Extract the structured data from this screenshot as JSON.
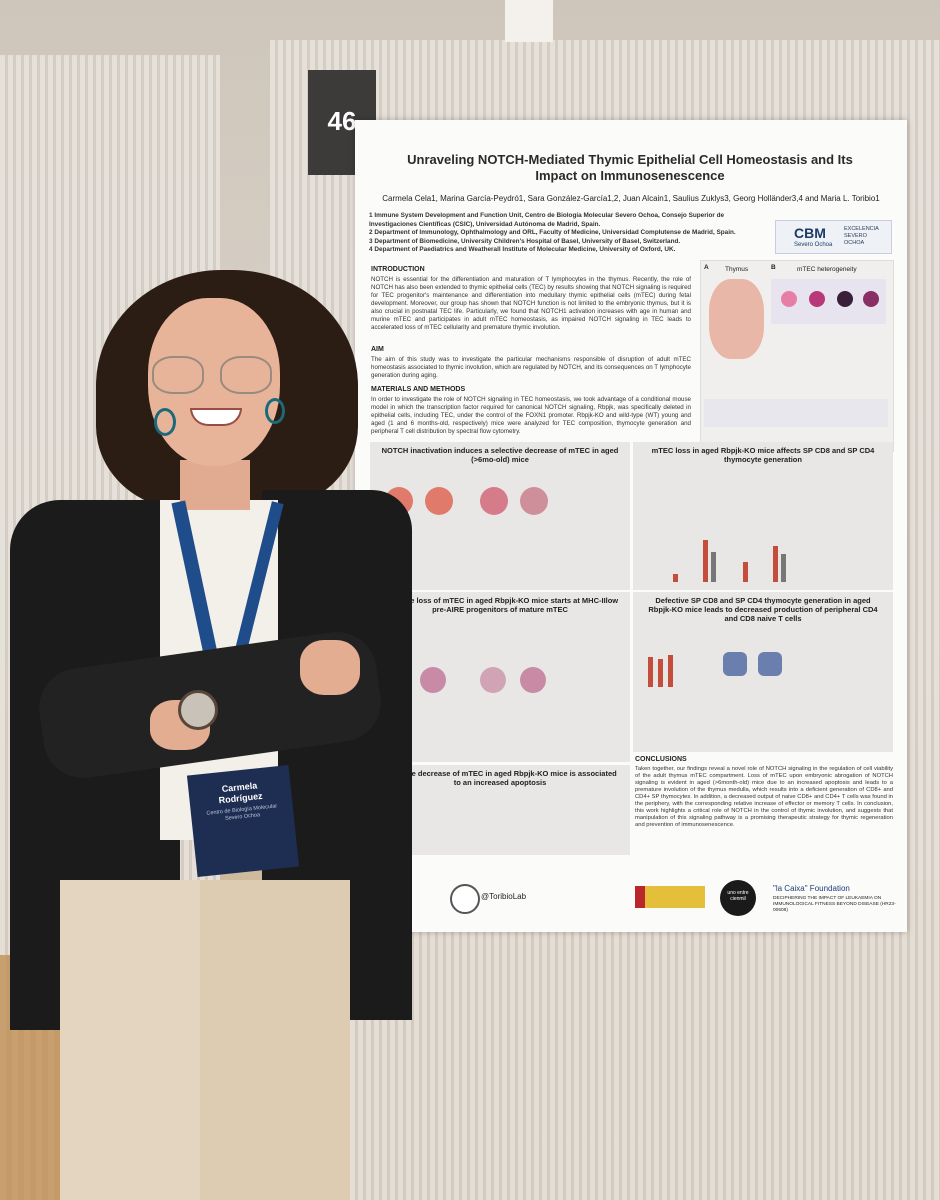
{
  "booth": {
    "number": "46"
  },
  "poster": {
    "title": "Unraveling NOTCH-Mediated Thymic Epithelial Cell Homeostasis and Its Impact on Immunosenescence",
    "authors": "Carmela Cela1, Marina García-Peydró1, Sara González-García1,2, Juan Alcain1, Saulius Zuklys3, Georg Holländer3,4 and Maria L. Toribio1",
    "affiliations": [
      "1 Immune System Development and Function Unit, Centro de Biología Molecular Severo Ochoa, Consejo Superior de Investigaciones Científicas (CSIC), Universidad Autónoma de Madrid, Spain.",
      "2 Department of Immunology, Ophthalmology and ORL, Faculty of Medicine, Universidad Complutense de Madrid, Spain.",
      "3 Department of Biomedicine, University Children's Hospital of Basel, University of Basel, Switzerland.",
      "4 Department of Paediatrics and Weatherall Institute of Molecular Medicine, University of Oxford, UK."
    ],
    "logo": {
      "name": "CBM",
      "sub": "Severo Ochoa",
      "right": "EXCELENCIA SEVERO OCHOA"
    },
    "introduction": {
      "heading": "INTRODUCTION",
      "text": "NOTCH is essential for the differentiation and maturation of T lymphocytes in the thymus. Recently, the role of NOTCH has also been extended to thymic epithelial cells (TEC) by results showing that NOTCH signaling is required for TEC progenitor's maintenance and differentiation into medullary thymic epithelial cells (mTEC) during fetal development. Moreover, our group has shown that NOTCH function is not limited to the embryonic thymus, but it is also crucial in postnatal TEC life. Particularly, we found that NOTCH1 activation increases with age in human and murine mTEC and participates in adult mTEC homeostasis, as impaired NOTCH signaling in TEC leads to accelerated loss of mTEC cellularity and premature thymic involution."
    },
    "aim": {
      "heading": "AIM",
      "text": "The aim of this study was to investigate the particular mechanisms responsible of disruption of adult mTEC homeostasis associated to thymic involution, which are regulated by NOTCH, and its consequences on T lymphocyte generation during aging."
    },
    "methods": {
      "heading": "MATERIALS AND METHODS",
      "text": "In order to investigate the role of NOTCH signaling in TEC homeostasis, we took advantage of a conditional mouse model in which the transcription factor required for canonical NOTCH signaling, Rbpjk, was specifically deleted in epithelial cells, including TEC, under the control of the FOXN1 promoter. Rbpjk-KO and wild-type (WT) young and aged (1 and 6 months-old, respectively) mice were analyzed for TEC composition, thymocyte generation and peripheral T cell distribution by spectral flow cytometry."
    },
    "fig_top_labels": {
      "a": "A",
      "thymus": "Thymus",
      "b": "B",
      "mtec": "mTEC heterogeneity"
    },
    "panels": {
      "p1": "NOTCH inactivation induces a selective decrease of mTEC in aged (>6mo-old) mice",
      "p2": "mTEC loss in aged Rbpjk-KO mice affects SP CD8 and SP CD4 thymocyte generation",
      "p3": "Selective loss of mTEC in aged Rbpjk-KO mice starts at MHC-IIlow pre-AIRE progenitors of mature mTEC",
      "p4": "Defective SP CD8 and SP CD4 thymocyte generation in aged Rbpjk-KO mice leads to decreased production of peripheral CD4 and CD8 naive T cells",
      "p5": "Selective decrease of mTEC in aged Rbpjk-KO mice is associated to an increased apoptosis"
    },
    "conclusions": {
      "heading": "CONCLUSIONS",
      "text": "Taken together, our findings reveal a novel role of NOTCH signaling in the regulation of cell viability of the adult thymus mTEC compartment. Loss of mTEC upon embryonic abrogation of NOTCH signaling is evident in aged (>6month-old) mice due to an increased apoptosis and leads to a premature involution of the thymus medulla, which results into a deficient generation of CD8+ and CD4+ SP thymocytes. In addition, a decreased output of naive CD8+ and CD4+ T cells was found in the periphery, with the corresponding relative increase of effector or memory T cells. In conclusion, this work highlights a critical role of NOTCH in the control of thymic involution, and suggests that manipulation of this signaling pathway is a promising therapeutic strategy for thymic regeneration and prevention of immunosenescence."
    },
    "footer": {
      "lab_handle": "@ToribioLab",
      "org": "uno entre cienmil",
      "foundation": "\"la Caixa\" Foundation",
      "foundation_sub": "DECIPHERING THE IMPACT OF LEUKAEMIA ON IMMUNOLOGICAL FITNESS BEYOND DISEASE (HR23-00608)"
    }
  },
  "badge": {
    "name": "Carmela Rodríguez",
    "sub": "Centro de Biología Molecular Severo Ochoa"
  }
}
